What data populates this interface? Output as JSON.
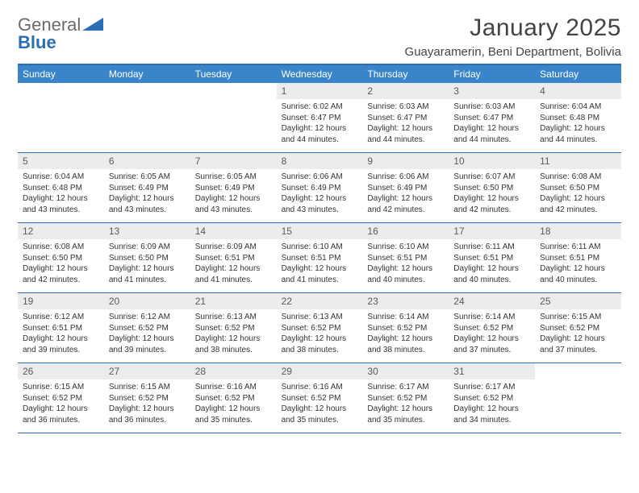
{
  "logo": {
    "general": "General",
    "blue": "Blue"
  },
  "title": "January 2025",
  "location": "Guayaramerin, Beni Department, Bolivia",
  "colors": {
    "brand_blue": "#2a6fb5",
    "header_blue": "#3a85c9",
    "daynum_bg": "#ececec",
    "text": "#333333",
    "logo_gray": "#6a6a6a"
  },
  "weekdays": [
    "Sunday",
    "Monday",
    "Tuesday",
    "Wednesday",
    "Thursday",
    "Friday",
    "Saturday"
  ],
  "weeks": [
    [
      {
        "empty": true
      },
      {
        "empty": true
      },
      {
        "empty": true
      },
      {
        "num": "1",
        "sunrise": "6:02 AM",
        "sunset": "6:47 PM",
        "daylight": "12 hours and 44 minutes."
      },
      {
        "num": "2",
        "sunrise": "6:03 AM",
        "sunset": "6:47 PM",
        "daylight": "12 hours and 44 minutes."
      },
      {
        "num": "3",
        "sunrise": "6:03 AM",
        "sunset": "6:47 PM",
        "daylight": "12 hours and 44 minutes."
      },
      {
        "num": "4",
        "sunrise": "6:04 AM",
        "sunset": "6:48 PM",
        "daylight": "12 hours and 44 minutes."
      }
    ],
    [
      {
        "num": "5",
        "sunrise": "6:04 AM",
        "sunset": "6:48 PM",
        "daylight": "12 hours and 43 minutes."
      },
      {
        "num": "6",
        "sunrise": "6:05 AM",
        "sunset": "6:49 PM",
        "daylight": "12 hours and 43 minutes."
      },
      {
        "num": "7",
        "sunrise": "6:05 AM",
        "sunset": "6:49 PM",
        "daylight": "12 hours and 43 minutes."
      },
      {
        "num": "8",
        "sunrise": "6:06 AM",
        "sunset": "6:49 PM",
        "daylight": "12 hours and 43 minutes."
      },
      {
        "num": "9",
        "sunrise": "6:06 AM",
        "sunset": "6:49 PM",
        "daylight": "12 hours and 42 minutes."
      },
      {
        "num": "10",
        "sunrise": "6:07 AM",
        "sunset": "6:50 PM",
        "daylight": "12 hours and 42 minutes."
      },
      {
        "num": "11",
        "sunrise": "6:08 AM",
        "sunset": "6:50 PM",
        "daylight": "12 hours and 42 minutes."
      }
    ],
    [
      {
        "num": "12",
        "sunrise": "6:08 AM",
        "sunset": "6:50 PM",
        "daylight": "12 hours and 42 minutes."
      },
      {
        "num": "13",
        "sunrise": "6:09 AM",
        "sunset": "6:50 PM",
        "daylight": "12 hours and 41 minutes."
      },
      {
        "num": "14",
        "sunrise": "6:09 AM",
        "sunset": "6:51 PM",
        "daylight": "12 hours and 41 minutes."
      },
      {
        "num": "15",
        "sunrise": "6:10 AM",
        "sunset": "6:51 PM",
        "daylight": "12 hours and 41 minutes."
      },
      {
        "num": "16",
        "sunrise": "6:10 AM",
        "sunset": "6:51 PM",
        "daylight": "12 hours and 40 minutes."
      },
      {
        "num": "17",
        "sunrise": "6:11 AM",
        "sunset": "6:51 PM",
        "daylight": "12 hours and 40 minutes."
      },
      {
        "num": "18",
        "sunrise": "6:11 AM",
        "sunset": "6:51 PM",
        "daylight": "12 hours and 40 minutes."
      }
    ],
    [
      {
        "num": "19",
        "sunrise": "6:12 AM",
        "sunset": "6:51 PM",
        "daylight": "12 hours and 39 minutes."
      },
      {
        "num": "20",
        "sunrise": "6:12 AM",
        "sunset": "6:52 PM",
        "daylight": "12 hours and 39 minutes."
      },
      {
        "num": "21",
        "sunrise": "6:13 AM",
        "sunset": "6:52 PM",
        "daylight": "12 hours and 38 minutes."
      },
      {
        "num": "22",
        "sunrise": "6:13 AM",
        "sunset": "6:52 PM",
        "daylight": "12 hours and 38 minutes."
      },
      {
        "num": "23",
        "sunrise": "6:14 AM",
        "sunset": "6:52 PM",
        "daylight": "12 hours and 38 minutes."
      },
      {
        "num": "24",
        "sunrise": "6:14 AM",
        "sunset": "6:52 PM",
        "daylight": "12 hours and 37 minutes."
      },
      {
        "num": "25",
        "sunrise": "6:15 AM",
        "sunset": "6:52 PM",
        "daylight": "12 hours and 37 minutes."
      }
    ],
    [
      {
        "num": "26",
        "sunrise": "6:15 AM",
        "sunset": "6:52 PM",
        "daylight": "12 hours and 36 minutes."
      },
      {
        "num": "27",
        "sunrise": "6:15 AM",
        "sunset": "6:52 PM",
        "daylight": "12 hours and 36 minutes."
      },
      {
        "num": "28",
        "sunrise": "6:16 AM",
        "sunset": "6:52 PM",
        "daylight": "12 hours and 35 minutes."
      },
      {
        "num": "29",
        "sunrise": "6:16 AM",
        "sunset": "6:52 PM",
        "daylight": "12 hours and 35 minutes."
      },
      {
        "num": "30",
        "sunrise": "6:17 AM",
        "sunset": "6:52 PM",
        "daylight": "12 hours and 35 minutes."
      },
      {
        "num": "31",
        "sunrise": "6:17 AM",
        "sunset": "6:52 PM",
        "daylight": "12 hours and 34 minutes."
      },
      {
        "empty": true
      }
    ]
  ],
  "labels": {
    "sunrise": "Sunrise: ",
    "sunset": "Sunset: ",
    "daylight": "Daylight: "
  }
}
